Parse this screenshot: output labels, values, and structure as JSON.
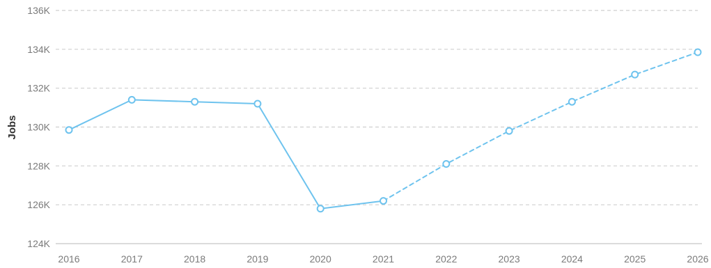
{
  "colors": {
    "series_line": "#6ec3ee",
    "grid": "#cfcfcf",
    "axis": "#cfcfcf",
    "tick_text": "#7a7a7a",
    "marker_fill": "#ffffff"
  },
  "chart_data": {
    "type": "line",
    "title": "",
    "xlabel": "",
    "ylabel": "Jobs",
    "ylim": [
      124000,
      136000
    ],
    "y_ticks": [
      124000,
      126000,
      128000,
      130000,
      132000,
      134000,
      136000
    ],
    "y_tick_labels": [
      "124K",
      "126K",
      "128K",
      "130K",
      "132K",
      "134K",
      "136K"
    ],
    "x": [
      "2016",
      "2017",
      "2018",
      "2019",
      "2020",
      "2021",
      "2022",
      "2023",
      "2024",
      "2025",
      "2026"
    ],
    "grid": true,
    "grid_style": "dashed",
    "legend": "none",
    "series": [
      {
        "segments": [
          {
            "style": "solid",
            "x": [
              "2016",
              "2017",
              "2018",
              "2019",
              "2020",
              "2021"
            ],
            "values": [
              129850,
              131400,
              131300,
              131200,
              125800,
              126200
            ]
          },
          {
            "style": "dashed",
            "x": [
              "2021",
              "2022",
              "2023",
              "2024",
              "2025",
              "2026"
            ],
            "values": [
              126200,
              128100,
              129800,
              131300,
              132700,
              133850
            ]
          }
        ]
      }
    ]
  }
}
